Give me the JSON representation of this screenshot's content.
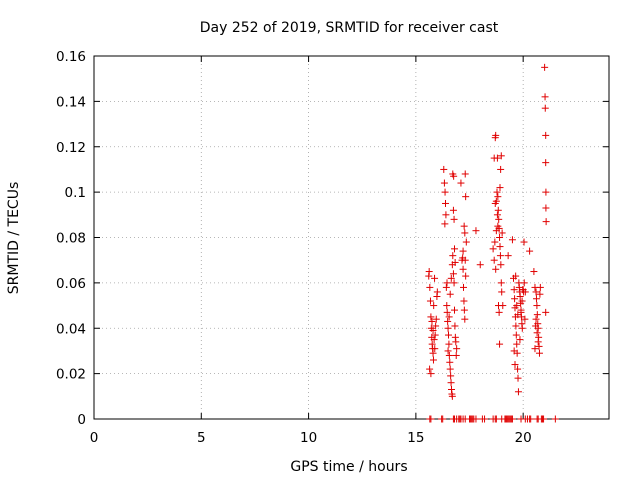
{
  "chart_data": {
    "type": "scatter",
    "title": "Day 252 of 2019, SRMTID for receiver cast",
    "xlabel": "GPS time / hours",
    "ylabel": "SRMTID / TECUs",
    "xlim": [
      0,
      24
    ],
    "ylim": [
      0,
      0.16
    ],
    "xticks": [
      "0",
      "5",
      "10",
      "15",
      "20"
    ],
    "yticks": [
      "0",
      "0.02",
      "0.04",
      "0.06",
      "0.08",
      "0.1",
      "0.12",
      "0.14",
      "0.16"
    ],
    "grid": true,
    "marker": "+",
    "color": "#e00000",
    "series": [
      {
        "points": [
          [
            15.6,
            0.063
          ],
          [
            15.62,
            0.065
          ],
          [
            15.65,
            0.058
          ],
          [
            15.68,
            0.052
          ],
          [
            15.7,
            0.045
          ],
          [
            15.72,
            0.04
          ],
          [
            15.74,
            0.036
          ],
          [
            15.76,
            0.033
          ],
          [
            15.78,
            0.031
          ],
          [
            15.8,
            0.029
          ],
          [
            15.82,
            0.026
          ],
          [
            15.64,
            0.022
          ],
          [
            15.7,
            0.02
          ],
          [
            15.75,
            0.043
          ],
          [
            15.8,
            0.039
          ],
          [
            15.85,
            0.035
          ],
          [
            15.88,
            0.031
          ],
          [
            15.9,
            0.037
          ],
          [
            15.92,
            0.041
          ],
          [
            15.95,
            0.044
          ],
          [
            15.98,
            0.054
          ],
          [
            16.0,
            0.056
          ],
          [
            15.87,
            0.062
          ],
          [
            15.83,
            0.05
          ],
          [
            16.3,
            0.11
          ],
          [
            16.33,
            0.104
          ],
          [
            16.36,
            0.1
          ],
          [
            16.38,
            0.095
          ],
          [
            16.4,
            0.09
          ],
          [
            16.35,
            0.086
          ],
          [
            16.42,
            0.058
          ],
          [
            16.44,
            0.05
          ],
          [
            16.46,
            0.047
          ],
          [
            16.48,
            0.043
          ],
          [
            16.5,
            0.04
          ],
          [
            16.52,
            0.037
          ],
          [
            16.54,
            0.033
          ],
          [
            16.56,
            0.028
          ],
          [
            16.58,
            0.025
          ],
          [
            16.6,
            0.022
          ],
          [
            16.62,
            0.019
          ],
          [
            16.64,
            0.016
          ],
          [
            16.66,
            0.013
          ],
          [
            16.68,
            0.011
          ],
          [
            16.7,
            0.01
          ],
          [
            16.5,
            0.03
          ],
          [
            16.55,
            0.045
          ],
          [
            16.6,
            0.055
          ],
          [
            16.65,
            0.062
          ],
          [
            16.7,
            0.068
          ],
          [
            16.72,
            0.072
          ],
          [
            16.75,
            0.064
          ],
          [
            16.78,
            0.06
          ],
          [
            16.8,
            0.048
          ],
          [
            16.82,
            0.041
          ],
          [
            16.84,
            0.036
          ],
          [
            16.86,
            0.034
          ],
          [
            16.88,
            0.028
          ],
          [
            16.45,
            0.06
          ],
          [
            16.75,
            0.092
          ],
          [
            16.78,
            0.088
          ],
          [
            16.72,
            0.108
          ],
          [
            16.76,
            0.107
          ],
          [
            16.8,
            0.075
          ],
          [
            16.83,
            0.069
          ],
          [
            16.9,
            0.031
          ],
          [
            17.1,
            0.104
          ],
          [
            17.15,
            0.07
          ],
          [
            17.2,
            0.066
          ],
          [
            17.22,
            0.058
          ],
          [
            17.24,
            0.052
          ],
          [
            17.26,
            0.048
          ],
          [
            17.28,
            0.044
          ],
          [
            17.3,
            0.108
          ],
          [
            17.32,
            0.098
          ],
          [
            17.25,
            0.085
          ],
          [
            17.28,
            0.082
          ],
          [
            17.35,
            0.078
          ],
          [
            17.2,
            0.074
          ],
          [
            17.18,
            0.071
          ],
          [
            17.3,
            0.07
          ],
          [
            17.32,
            0.063
          ],
          [
            17.8,
            0.083
          ],
          [
            18.0,
            0.068
          ],
          [
            18.6,
            0.075
          ],
          [
            18.65,
            0.115
          ],
          [
            18.7,
            0.124
          ],
          [
            18.72,
            0.125
          ],
          [
            18.75,
            0.096
          ],
          [
            18.78,
            0.1
          ],
          [
            18.8,
            0.115
          ],
          [
            18.82,
            0.098
          ],
          [
            18.84,
            0.092
          ],
          [
            18.86,
            0.088
          ],
          [
            18.88,
            0.084
          ],
          [
            18.9,
            0.08
          ],
          [
            18.92,
            0.076
          ],
          [
            18.94,
            0.072
          ],
          [
            18.96,
            0.068
          ],
          [
            18.98,
            0.06
          ],
          [
            19.0,
            0.056
          ],
          [
            18.85,
            0.05
          ],
          [
            18.88,
            0.047
          ],
          [
            18.9,
            0.033
          ],
          [
            18.7,
            0.095
          ],
          [
            18.75,
            0.083
          ],
          [
            18.65,
            0.07
          ],
          [
            18.68,
            0.078
          ],
          [
            18.95,
            0.11
          ],
          [
            18.98,
            0.116
          ],
          [
            18.92,
            0.102
          ],
          [
            18.72,
            0.066
          ],
          [
            18.8,
            0.09
          ],
          [
            18.82,
            0.085
          ],
          [
            19.02,
            0.082
          ],
          [
            19.05,
            0.05
          ],
          [
            19.3,
            0.072
          ],
          [
            19.5,
            0.079
          ],
          [
            19.55,
            0.062
          ],
          [
            19.58,
            0.057
          ],
          [
            19.6,
            0.053
          ],
          [
            19.62,
            0.049
          ],
          [
            19.64,
            0.045
          ],
          [
            19.66,
            0.041
          ],
          [
            19.68,
            0.037
          ],
          [
            19.7,
            0.033
          ],
          [
            19.72,
            0.029
          ],
          [
            19.74,
            0.022
          ],
          [
            19.76,
            0.018
          ],
          [
            19.78,
            0.012
          ],
          [
            19.8,
            0.06
          ],
          [
            19.82,
            0.058
          ],
          [
            19.84,
            0.056
          ],
          [
            19.86,
            0.054
          ],
          [
            19.88,
            0.051
          ],
          [
            19.9,
            0.048
          ],
          [
            19.92,
            0.045
          ],
          [
            19.94,
            0.042
          ],
          [
            19.96,
            0.04
          ],
          [
            19.98,
            0.057
          ],
          [
            20.0,
            0.057
          ],
          [
            20.02,
            0.056
          ],
          [
            20.04,
            0.078
          ],
          [
            19.65,
            0.063
          ],
          [
            19.7,
            0.05
          ],
          [
            19.75,
            0.046
          ],
          [
            19.85,
            0.035
          ],
          [
            19.9,
            0.047
          ],
          [
            19.95,
            0.052
          ],
          [
            20.05,
            0.06
          ],
          [
            20.08,
            0.044
          ],
          [
            20.1,
            0.056
          ],
          [
            19.58,
            0.03
          ],
          [
            19.62,
            0.024
          ],
          [
            20.3,
            0.074
          ],
          [
            20.5,
            0.065
          ],
          [
            20.55,
            0.058
          ],
          [
            20.6,
            0.056
          ],
          [
            20.62,
            0.053
          ],
          [
            20.64,
            0.05
          ],
          [
            20.66,
            0.046
          ],
          [
            20.68,
            0.042
          ],
          [
            20.7,
            0.04
          ],
          [
            20.72,
            0.036
          ],
          [
            20.74,
            0.032
          ],
          [
            20.76,
            0.029
          ],
          [
            20.6,
            0.044
          ],
          [
            20.65,
            0.038
          ],
          [
            20.7,
            0.034
          ],
          [
            20.55,
            0.031
          ],
          [
            20.78,
            0.055
          ],
          [
            20.8,
            0.058
          ],
          [
            20.58,
            0.041
          ],
          [
            21.0,
            0.155
          ],
          [
            21.02,
            0.142
          ],
          [
            21.03,
            0.137
          ],
          [
            21.05,
            0.125
          ],
          [
            21.05,
            0.113
          ],
          [
            21.06,
            0.1
          ],
          [
            21.06,
            0.093
          ],
          [
            21.07,
            0.087
          ],
          [
            21.05,
            0.047
          ]
        ]
      },
      {
        "points": [
          [
            15.65,
            0
          ],
          [
            15.7,
            0
          ],
          [
            16.2,
            0
          ],
          [
            16.25,
            0
          ],
          [
            16.75,
            0
          ],
          [
            16.8,
            0
          ],
          [
            16.9,
            0
          ],
          [
            17.0,
            0
          ],
          [
            17.05,
            0
          ],
          [
            17.1,
            0
          ],
          [
            17.2,
            0
          ],
          [
            17.3,
            0
          ],
          [
            17.5,
            0
          ],
          [
            17.55,
            0
          ],
          [
            17.6,
            0
          ],
          [
            17.65,
            0
          ],
          [
            17.7,
            0
          ],
          [
            17.8,
            0
          ],
          [
            18.1,
            0
          ],
          [
            18.2,
            0
          ],
          [
            18.6,
            0
          ],
          [
            18.7,
            0
          ],
          [
            18.75,
            0
          ],
          [
            19.0,
            0
          ],
          [
            19.15,
            0
          ],
          [
            19.2,
            0
          ],
          [
            19.25,
            0
          ],
          [
            19.3,
            0
          ],
          [
            19.35,
            0
          ],
          [
            19.4,
            0
          ],
          [
            19.45,
            0
          ],
          [
            19.5,
            0
          ],
          [
            19.9,
            0
          ],
          [
            20.1,
            0
          ],
          [
            20.2,
            0
          ],
          [
            20.3,
            0
          ],
          [
            20.35,
            0
          ],
          [
            20.65,
            0
          ],
          [
            20.7,
            0
          ],
          [
            20.85,
            0
          ],
          [
            20.9,
            0
          ],
          [
            20.95,
            0
          ],
          [
            21.5,
            0
          ]
        ]
      }
    ]
  }
}
